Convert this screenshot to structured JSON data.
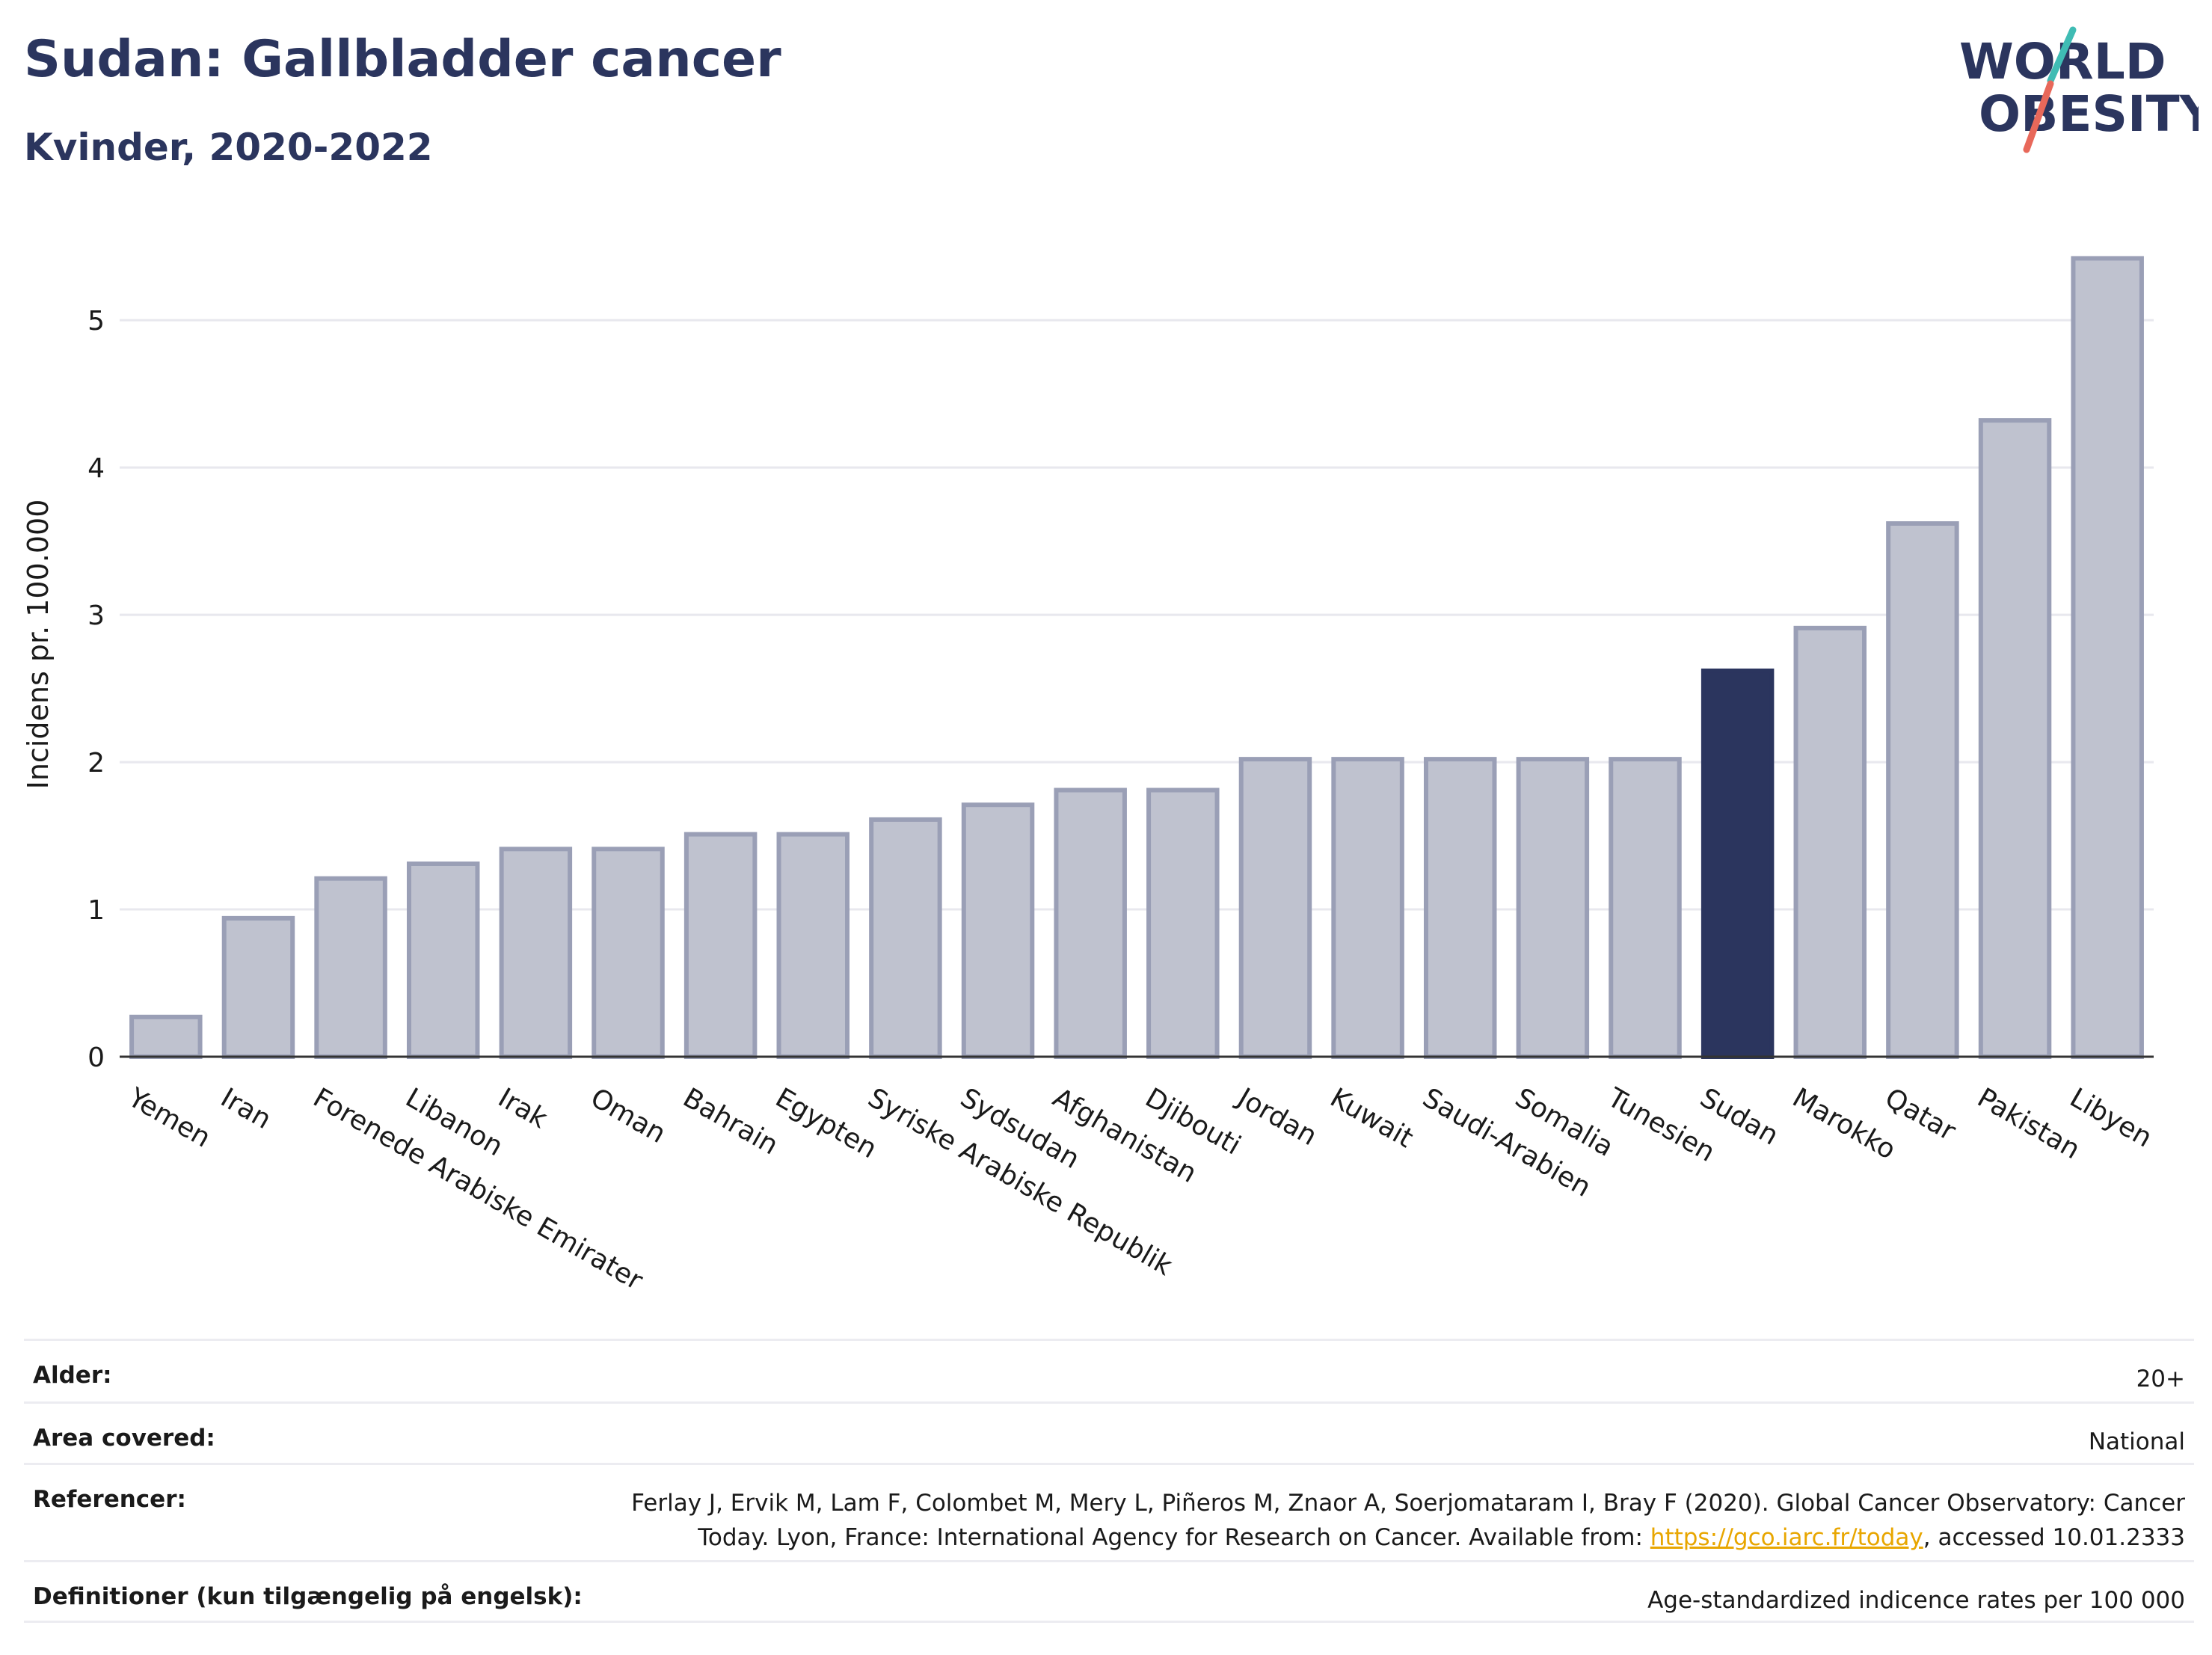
{
  "header": {
    "title": "Sudan: Gallbladder cancer",
    "subtitle": "Kvinder, 2020-2022"
  },
  "logo": {
    "line1": "WORLD",
    "line2": "OBESITY",
    "colors": {
      "text": "#2b355e",
      "slash_top": "#3fbcb4",
      "slash_bottom": "#e8685a"
    }
  },
  "chart_data": {
    "type": "bar",
    "ylabel": "Incidens pr. 100.000",
    "ylim": [
      0,
      5.6
    ],
    "yticks": [
      0,
      1,
      2,
      3,
      4,
      5
    ],
    "grid": true,
    "highlight": "Sudan",
    "colors": {
      "bar": "#bfc2cf",
      "bar_edge": "#9a9fb6",
      "highlight": "#2b355e",
      "grid": "#e8e8ee",
      "axis": "#333333"
    },
    "categories": [
      "Yemen",
      "Iran",
      "Forenede Arabiske Emirater",
      "Libanon",
      "Irak",
      "Oman",
      "Bahrain",
      "Egypten",
      "Syriske Arabiske Republik",
      "Sydsudan",
      "Afghanistan",
      "Djibouti",
      "Jordan",
      "Kuwait",
      "Saudi-Arabien",
      "Somalia",
      "Tunesien",
      "Sudan",
      "Marokko",
      "Qatar",
      "Pakistan",
      "Libyen"
    ],
    "values": [
      0.27,
      0.94,
      1.21,
      1.31,
      1.41,
      1.41,
      1.51,
      1.51,
      1.61,
      1.71,
      1.81,
      1.81,
      2.02,
      2.02,
      2.02,
      2.02,
      2.02,
      2.62,
      2.91,
      3.62,
      4.32,
      5.42
    ]
  },
  "meta": {
    "age_label": "Alder:",
    "age_value": "20+",
    "area_label": "Area covered:",
    "area_value": "National",
    "ref_label": "Referencer:",
    "ref_line1": "Ferlay J, Ervik M, Lam F, Colombet M, Mery L, Piñeros M, Znaor A, Soerjomataram I, Bray F (2020). Global Cancer Observatory: Cancer",
    "ref_line2_pre": "Today. Lyon, France: International Agency for Research on Cancer. Available from: ",
    "ref_link": "https://gco.iarc.fr/today",
    "ref_line2_post": ", accessed 10.01.2333",
    "def_label": "Definitioner (kun tilgængelig på engelsk):",
    "def_value": "Age-standardized indicence rates per 100 000"
  }
}
